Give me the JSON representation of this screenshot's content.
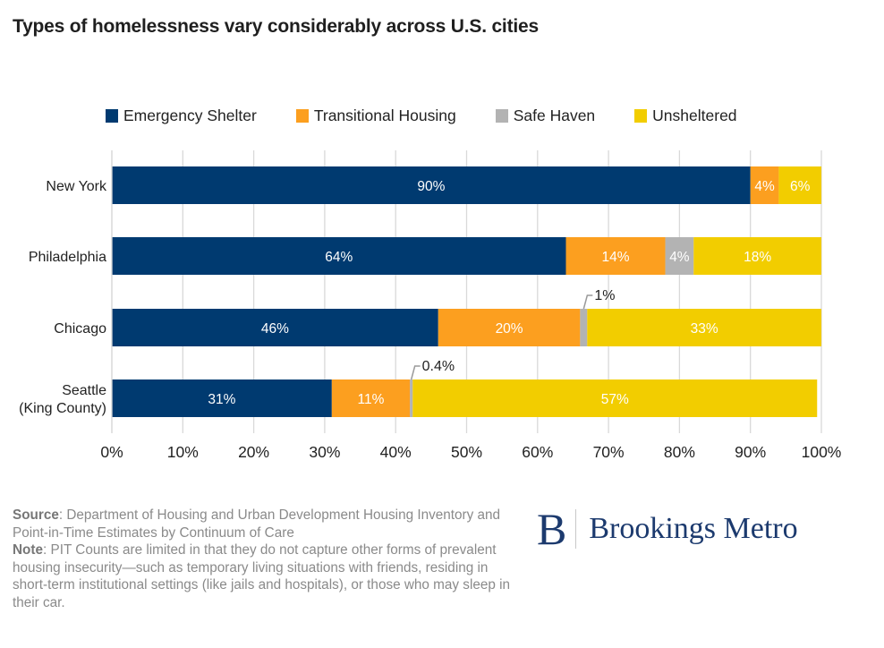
{
  "title": "Types of homelessness vary considerably across U.S. cities",
  "chart_data": {
    "type": "bar",
    "orientation": "horizontal",
    "stacked": true,
    "title": "Types of homelessness vary considerably across U.S. cities",
    "categories": [
      "New York",
      "Philadelphia",
      "Chicago",
      "Seattle (King County)"
    ],
    "category_labels": [
      [
        "New York"
      ],
      [
        "Philadelphia"
      ],
      [
        "Chicago"
      ],
      [
        "Seattle",
        "(King County)"
      ]
    ],
    "series": [
      {
        "name": "Emergency Shelter",
        "color": "#003a70",
        "values": [
          90,
          64,
          46,
          31
        ],
        "labels": [
          "90%",
          "64%",
          "46%",
          "31%"
        ]
      },
      {
        "name": "Transitional Housing",
        "color": "#fc9f1f",
        "values": [
          4,
          14,
          20,
          11
        ],
        "labels": [
          "4%",
          "14%",
          "20%",
          "11%"
        ]
      },
      {
        "name": "Safe Haven",
        "color": "#b3b3b3",
        "values": [
          0,
          4,
          1,
          0.4
        ],
        "labels": [
          "",
          "4%",
          "1%",
          "0.4%"
        ],
        "callout": [
          false,
          false,
          true,
          true
        ]
      },
      {
        "name": "Unsheltered",
        "color": "#f2cd00",
        "values": [
          6,
          18,
          33,
          57
        ],
        "labels": [
          "6%",
          "18%",
          "33%",
          "57%"
        ]
      }
    ],
    "xlim": [
      0,
      100
    ],
    "xticks": [
      "0%",
      "10%",
      "20%",
      "30%",
      "40%",
      "50%",
      "60%",
      "70%",
      "80%",
      "90%",
      "100%"
    ],
    "xlabel": "",
    "ylabel": "",
    "grid": true,
    "legend_position": "top"
  },
  "footer": {
    "source_label": "Source",
    "source_text": ": Department of Housing and Urban Development Housing Inventory and Point-in-Time Estimates by Continuum of Care",
    "note_label": "Note",
    "note_text": ": PIT Counts are limited in that they do not capture other forms of prevalent housing insecurity—such as temporary living situations with friends, residing in short-term institutional settings (like jails and hospitals), or those who may sleep in their car."
  },
  "logo": {
    "mark": "B",
    "text": "Brookings Metro"
  }
}
